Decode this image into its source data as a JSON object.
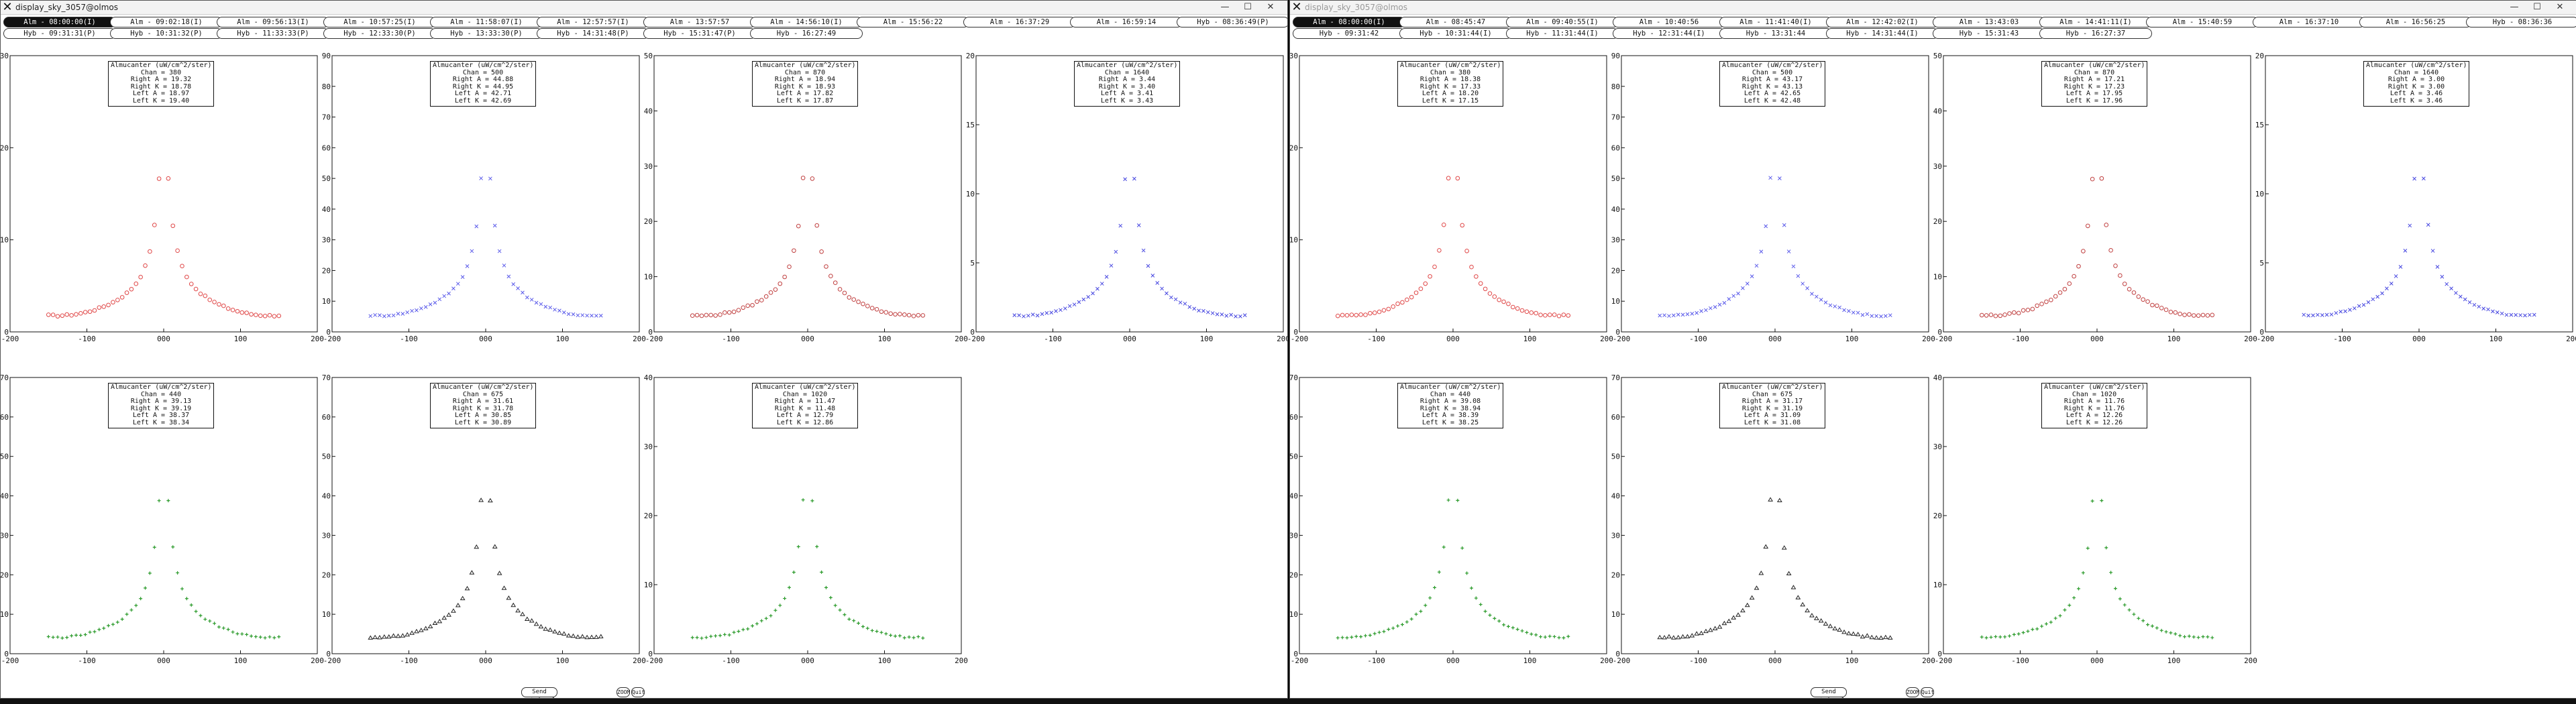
{
  "windows": [
    {
      "title": "display_sky_3057@olmos",
      "dim": false,
      "row1": [
        "Alm - 08:00:00(I)",
        "Alm - 09:02:18(I)",
        "Alm - 09:56:13(I)",
        "Alm - 10:57:25(I)",
        "Alm - 11:58:07(I)",
        "Alm - 12:57:57(I)",
        "Alm - 13:57:57",
        "Alm - 14:56:10(I)",
        "Alm - 15:56:22",
        "Alm - 16:37:29",
        "Alm - 16:59:14",
        "Hyb - 08:36:49(P)"
      ],
      "row2": [
        "Hyb - 09:31:31(P)",
        "Hyb - 10:31:32(P)",
        "Hyb - 11:33:33(P)",
        "Hyb - 12:33:30(P)",
        "Hyb - 13:33:30(P)",
        "Hyb - 14:31:48(P)",
        "Hyb - 15:31:47(P)",
        "Hyb - 16:27:49"
      ],
      "selected": [
        0
      ],
      "panels": [
        {
          "legend": [
            "Almucanter (uW/cm^2/ster)",
            "Chan = 380",
            "Right A = 19.32",
            "Right K = 18.78",
            "Left A = 18.97",
            "Left K = 19.40"
          ],
          "ymax": 30,
          "yticks": [
            "10",
            "20",
            "30"
          ],
          "color": "#e04848",
          "marker": "circle"
        },
        {
          "legend": [
            "Almucanter (uW/cm^2/ster)",
            "Chan = 500",
            "Right A = 44.88",
            "Right K = 44.95",
            "Left A = 42.71",
            "Left K = 42.69"
          ],
          "ymax": 90,
          "yticks": [
            "10",
            "20",
            "30",
            "40",
            "50",
            "60",
            "70",
            "80",
            "90"
          ],
          "color": "#5a5aea",
          "marker": "x"
        },
        {
          "legend": [
            "Almucanter (uW/cm^2/ster)",
            "Chan = 870",
            "Right A = 18.94",
            "Right K = 18.93",
            "Left A = 17.82",
            "Left K = 17.87"
          ],
          "ymax": 50,
          "yticks": [
            "10",
            "20",
            "30",
            "40",
            "50"
          ],
          "color": "#c04040",
          "marker": "circle"
        },
        {
          "legend": [
            "Almucanter (uW/cm^2/ster)",
            "Chan = 1640",
            "Right A = 3.44",
            "Right K = 3.40",
            "Left A = 3.41",
            "Left K = 3.43"
          ],
          "ymax": 20,
          "yticks": [
            "5",
            "10",
            "15",
            "20"
          ],
          "color": "#4646e0",
          "marker": "x"
        },
        {
          "legend": [
            "Almucanter (uW/cm^2/ster)",
            "Chan = 440",
            "Right A = 39.13",
            "Right K = 39.19",
            "Left A = 38.37",
            "Left K = 38.34"
          ],
          "ymax": 70,
          "yticks": [
            "10",
            "20",
            "30",
            "40",
            "50",
            "60",
            "70"
          ],
          "color": "#2a9a2a",
          "marker": "plus"
        },
        {
          "legend": [
            "Almucanter (uW/cm^2/ster)",
            "Chan = 675",
            "Right A = 31.61",
            "Right K = 31.78",
            "Left A = 30.85",
            "Left K = 30.89"
          ],
          "ymax": 70,
          "yticks": [
            "10",
            "20",
            "30",
            "40",
            "50",
            "60",
            "70"
          ],
          "color": "#222222",
          "marker": "tri"
        },
        {
          "legend": [
            "Almucanter (uW/cm^2/ster)",
            "Chan = 1020",
            "Right A = 11.47",
            "Right K = 11.48",
            "Left A = 12.79",
            "Left K = 12.86"
          ],
          "ymax": 40,
          "yticks": [
            "10",
            "20",
            "30",
            "40"
          ],
          "color": "#2a9a2a",
          "marker": "plus"
        }
      ],
      "send_label": "Send retrieval",
      "zoom_label": "ZOOM",
      "quit_label": "Quit"
    },
    {
      "title": "display_sky_3057@olmos",
      "dim": true,
      "row1": [
        "Alm - 08:00:00(I)",
        "Alm - 08:45:47",
        "Alm - 09:40:55(I)",
        "Alm - 10:40:56",
        "Alm - 11:41:40(I)",
        "Alm - 12:42:02(I)",
        "Alm - 13:43:03",
        "Alm - 14:41:11(I)",
        "Alm - 15:40:59",
        "Alm - 16:37:10",
        "Alm - 16:56:25",
        "Hyb - 08:36:36"
      ],
      "row2": [
        "Hyb - 09:31:42",
        "Hyb - 10:31:44(I)",
        "Hyb - 11:31:44(I)",
        "Hyb - 12:31:44(I)",
        "Hyb - 13:31:44",
        "Hyb - 14:31:44(I)",
        "Hyb - 15:31:43",
        "Hyb - 16:27:37"
      ],
      "selected": [
        0
      ],
      "panels": [
        {
          "legend": [
            "Almucanter (uW/cm^2/ster)",
            "Chan = 380",
            "Right A = 18.38",
            "Right K = 17.33",
            "Left A = 18.20",
            "Left K = 17.15"
          ],
          "ymax": 30,
          "yticks": [
            "10",
            "20",
            "30"
          ],
          "color": "#e04848",
          "marker": "circle"
        },
        {
          "legend": [
            "Almucanter (uW/cm^2/ster)",
            "Chan = 500",
            "Right A = 43.17",
            "Right K = 43.13",
            "Left A = 42.65",
            "Left K = 42.48"
          ],
          "ymax": 90,
          "yticks": [
            "10",
            "20",
            "30",
            "40",
            "50",
            "60",
            "70",
            "80",
            "90"
          ],
          "color": "#5a5aea",
          "marker": "x"
        },
        {
          "legend": [
            "Almucanter (uW/cm^2/ster)",
            "Chan = 870",
            "Right A = 17.21",
            "Right K = 17.23",
            "Left A = 17.95",
            "Left K = 17.96"
          ],
          "ymax": 50,
          "yticks": [
            "10",
            "20",
            "30",
            "40",
            "50"
          ],
          "color": "#c04040",
          "marker": "circle"
        },
        {
          "legend": [
            "Almucanter (uW/cm^2/ster)",
            "Chan = 1640",
            "Right A = 3.00",
            "Right K = 3.00",
            "Left A = 3.46",
            "Left K = 3.46"
          ],
          "ymax": 20,
          "yticks": [
            "5",
            "10",
            "15",
            "20"
          ],
          "color": "#4646e0",
          "marker": "x"
        },
        {
          "legend": [
            "Almucanter (uW/cm^2/ster)",
            "Chan = 440",
            "Right A = 39.08",
            "Right K = 38.94",
            "Left A = 38.39",
            "Left K = 38.25"
          ],
          "ymax": 70,
          "yticks": [
            "10",
            "20",
            "30",
            "40",
            "50",
            "60",
            "70"
          ],
          "color": "#2a9a2a",
          "marker": "plus"
        },
        {
          "legend": [
            "Almucanter (uW/cm^2/ster)",
            "Chan = 675",
            "Right A = 31.17",
            "Right K = 31.19",
            "Left A = 31.09",
            "Left K = 31.08"
          ],
          "ymax": 70,
          "yticks": [
            "10",
            "20",
            "30",
            "40",
            "50",
            "60",
            "70"
          ],
          "color": "#222222",
          "marker": "tri"
        },
        {
          "legend": [
            "Almucanter (uW/cm^2/ster)",
            "Chan = 1020",
            "Right A = 11.76",
            "Right K = 11.76",
            "Left A = 12.26",
            "Left K = 12.26"
          ],
          "ymax": 40,
          "yticks": [
            "10",
            "20",
            "30",
            "40"
          ],
          "color": "#2a9a2a",
          "marker": "plus"
        }
      ],
      "send_label": "Send retrieval",
      "zoom_label": "ZOOM",
      "quit_label": "Quit"
    }
  ],
  "xticks": [
    "-200",
    "-100",
    "000",
    "100",
    "200"
  ],
  "window_controls": [
    "—",
    "☐",
    "✕"
  ]
}
